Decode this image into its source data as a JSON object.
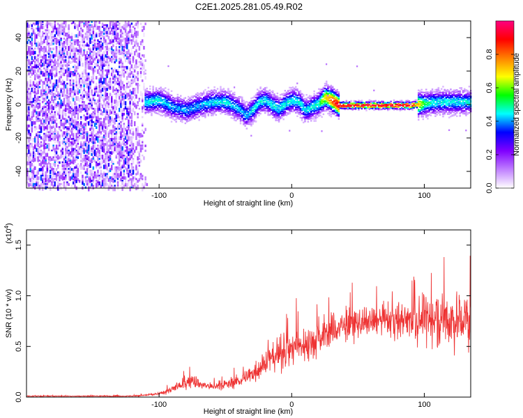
{
  "title": "C2E1.2025.281.05.49.R02",
  "chart_data": [
    {
      "type": "heatmap",
      "title": "C2E1.2025.281.05.49.R02",
      "xlabel": "Height of straight line (km)",
      "ylabel": "Frequency (Hz)",
      "xlim": [
        -200,
        135
      ],
      "ylim": [
        -50,
        50
      ],
      "xticks": [
        -100,
        0,
        100
      ],
      "yticks": [
        -40,
        -20,
        0,
        20,
        40
      ],
      "colorbar": {
        "label": "Normalized spectral amplitude",
        "range": [
          0,
          1
        ],
        "ticks": [
          "0.0",
          "0.2",
          "0.4",
          "0.6",
          "0.8"
        ],
        "colors": [
          "#ffffff",
          "#c080ff",
          "#8000ff",
          "#0000ff",
          "#00ffff",
          "#00ff00",
          "#ffff00",
          "#ff8000",
          "#ff0000",
          "#ff0080"
        ]
      },
      "ridge": {
        "x": [
          -112,
          -100,
          -90,
          -80,
          -70,
          -60,
          -50,
          -40,
          -35,
          -30,
          -25,
          -20,
          -15,
          -10,
          -5,
          0,
          5,
          10,
          15,
          20,
          25,
          30,
          35,
          50,
          70,
          90,
          100,
          110,
          120,
          135
        ],
        "y": [
          2,
          3,
          -1,
          -3,
          0,
          2,
          2,
          -2,
          -6,
          -3,
          2,
          3,
          0,
          -2,
          1,
          3,
          2,
          -3,
          -1,
          1,
          5,
          3,
          0,
          0,
          0,
          0,
          1,
          2,
          2,
          2
        ],
        "amplitude": [
          0.45,
          0.45,
          0.4,
          0.4,
          0.4,
          0.45,
          0.45,
          0.4,
          0.4,
          0.45,
          0.45,
          0.45,
          0.45,
          0.45,
          0.45,
          0.45,
          0.45,
          0.45,
          0.45,
          0.5,
          0.7,
          0.85,
          0.95,
          0.95,
          0.95,
          0.95,
          0.5,
          0.45,
          0.45,
          0.45
        ]
      },
      "noise_region": {
        "x": [
          -200,
          -105
        ],
        "amplitude": 0.25
      }
    },
    {
      "type": "line",
      "xlabel": "Height of straight line (km)",
      "ylabel": "SNR (10 * v/v)",
      "y_scale_label": "(x10",
      "y_scale_exponent": "4",
      "xlim": [
        -200,
        135
      ],
      "ylim": [
        0,
        1.65
      ],
      "xticks": [
        -100,
        0,
        100
      ],
      "yticks": [
        0.0,
        0.5,
        1.0,
        1.5
      ],
      "color": "#ee3333",
      "series": [
        {
          "x": [
            -200,
            -120,
            -100,
            -90,
            -80,
            -75,
            -70,
            -60,
            -50,
            -40,
            -30,
            -20,
            -10,
            0,
            10,
            20,
            30,
            40,
            50,
            60,
            70,
            80,
            90,
            100,
            110,
            120,
            135
          ],
          "y_mean": [
            0.01,
            0.01,
            0.03,
            0.08,
            0.13,
            0.18,
            0.13,
            0.1,
            0.12,
            0.16,
            0.23,
            0.35,
            0.42,
            0.48,
            0.52,
            0.58,
            0.66,
            0.7,
            0.72,
            0.74,
            0.75,
            0.76,
            0.77,
            0.78,
            0.78,
            0.77,
            0.75
          ],
          "y_spread": [
            0.005,
            0.005,
            0.02,
            0.04,
            0.06,
            0.08,
            0.05,
            0.04,
            0.05,
            0.06,
            0.1,
            0.14,
            0.16,
            0.18,
            0.18,
            0.2,
            0.18,
            0.16,
            0.15,
            0.15,
            0.16,
            0.18,
            0.2,
            0.25,
            0.3,
            0.3,
            0.3
          ]
        }
      ]
    }
  ]
}
